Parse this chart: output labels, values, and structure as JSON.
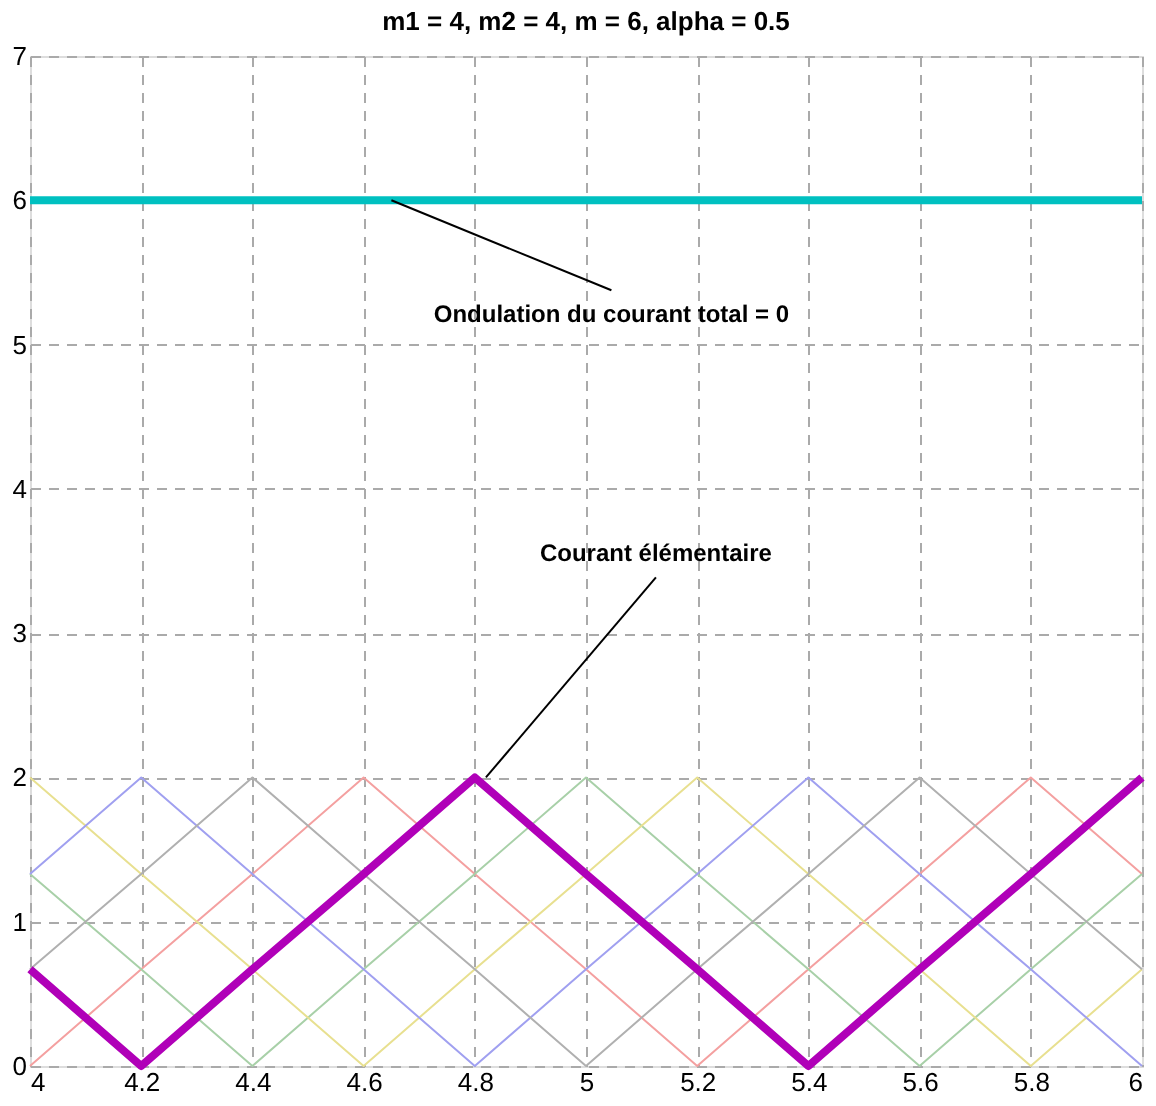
{
  "chart_data": {
    "type": "line",
    "title": "m1 = 4, m2 = 4, m = 6, alpha = 0.5",
    "x": [
      4,
      4.2,
      4.4,
      4.6,
      4.8,
      5,
      5.2,
      5.4,
      5.6,
      5.8,
      6
    ],
    "series": [
      {
        "color": "#f4a0a0",
        "values": [
          0,
          0.67,
          1.33,
          2,
          1.33,
          0.67,
          0,
          0.67,
          1.33,
          2,
          1.33
        ]
      },
      {
        "color": "#a8d0a8",
        "values": [
          1.33,
          0.67,
          0,
          0.67,
          1.33,
          2,
          1.33,
          0.67,
          0,
          0.67,
          1.33
        ]
      },
      {
        "color": "#e8e090",
        "values": [
          2,
          1.33,
          0.67,
          0,
          0.67,
          1.33,
          2,
          1.33,
          0.67,
          0,
          0.67
        ]
      },
      {
        "color": "#a0a0f0",
        "values": [
          1.33,
          2,
          1.33,
          0.67,
          0,
          0.67,
          1.33,
          2,
          1.33,
          0.67,
          0
        ]
      },
      {
        "color": "#b0b0b0",
        "values": [
          0.67,
          1.33,
          2,
          1.33,
          0.67,
          0,
          0.67,
          1.33,
          2,
          1.33,
          0.67
        ]
      },
      {
        "color": "#b000b8",
        "values": [
          0.67,
          0,
          0.67,
          1.33,
          2,
          1.33,
          0.67,
          0,
          0.67,
          1.33,
          2
        ]
      },
      {
        "color": "#00c0c0",
        "x": [
          4,
          6
        ],
        "values": [
          6,
          6
        ]
      }
    ],
    "xlim": [
      4,
      6
    ],
    "xticks": [
      4,
      4.2,
      4.4,
      4.6,
      4.8,
      5,
      5.2,
      5.4,
      5.6,
      5.8,
      6
    ],
    "ylim": [
      0,
      7
    ],
    "yticks": [
      0,
      1,
      2,
      3,
      4,
      5,
      6,
      7
    ],
    "grid": true,
    "marker": "none",
    "line_style": "solid",
    "annotations": [
      {
        "text": "Ondulation du courant total = 0",
        "x": 4.65,
        "y": 6
      },
      {
        "text": "Courant élémentaire",
        "x": 4.82,
        "y": 2
      }
    ]
  }
}
